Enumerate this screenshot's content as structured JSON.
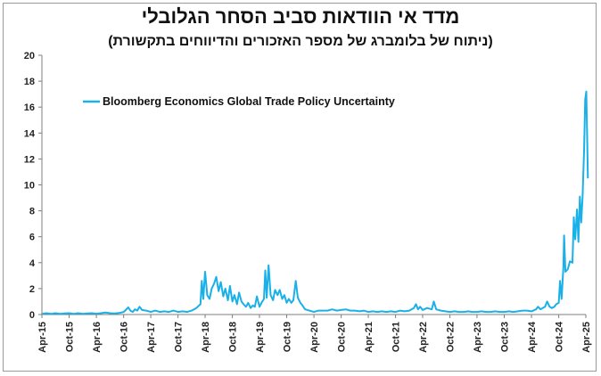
{
  "header": {
    "title": "מדד אי הוודאות סביב הסחר הגלובלי",
    "subtitle": "(ניתוח של בלומברג של מספר האזכורים והדיווחים בתקשורת)"
  },
  "chart_data": {
    "type": "line",
    "title": "מדד אי הוודאות סביב הסחר הגלובלי",
    "subtitle": "(ניתוח של בלומברג של מספר האזכורים והדיווחים בתקשורת)",
    "xlabel": "",
    "ylabel": "",
    "ylim": [
      0,
      20
    ],
    "yticks": [
      0,
      2,
      4,
      6,
      8,
      10,
      12,
      14,
      16,
      18,
      20
    ],
    "xticks": [
      "Apr-15",
      "Oct-15",
      "Apr-16",
      "Oct-16",
      "Apr-17",
      "Oct-17",
      "Apr-18",
      "Oct-18",
      "Apr-19",
      "Oct-19",
      "Apr-20",
      "Oct-20",
      "Apr-21",
      "Oct-21",
      "Apr-22",
      "Oct-22",
      "Apr-23",
      "Oct-23",
      "Apr-24",
      "Oct-24",
      "Apr-25"
    ],
    "x_start": "2015-04",
    "x_end": "2025-04",
    "grid": false,
    "legend_position": "top-left",
    "color": "#1ab0e8",
    "series": [
      {
        "name": "Bloomberg Economics Global Trade Policy Uncertainty",
        "points": [
          [
            "2015-04-01",
            0.05
          ],
          [
            "2015-05-01",
            0.1
          ],
          [
            "2015-06-01",
            0.05
          ],
          [
            "2015-07-01",
            0.1
          ],
          [
            "2015-08-01",
            0.05
          ],
          [
            "2015-09-01",
            0.08
          ],
          [
            "2015-10-01",
            0.1
          ],
          [
            "2015-11-01",
            0.05
          ],
          [
            "2015-12-01",
            0.1
          ],
          [
            "2016-01-01",
            0.05
          ],
          [
            "2016-02-01",
            0.08
          ],
          [
            "2016-03-01",
            0.1
          ],
          [
            "2016-04-01",
            0.06
          ],
          [
            "2016-05-01",
            0.1
          ],
          [
            "2016-06-01",
            0.15
          ],
          [
            "2016-07-01",
            0.1
          ],
          [
            "2016-08-01",
            0.08
          ],
          [
            "2016-09-01",
            0.12
          ],
          [
            "2016-10-01",
            0.2
          ],
          [
            "2016-11-01",
            0.55
          ],
          [
            "2016-11-15",
            0.3
          ],
          [
            "2016-12-01",
            0.2
          ],
          [
            "2016-12-15",
            0.4
          ],
          [
            "2017-01-01",
            0.3
          ],
          [
            "2017-01-15",
            0.6
          ],
          [
            "2017-02-01",
            0.35
          ],
          [
            "2017-03-01",
            0.3
          ],
          [
            "2017-04-01",
            0.2
          ],
          [
            "2017-05-01",
            0.3
          ],
          [
            "2017-06-01",
            0.2
          ],
          [
            "2017-07-01",
            0.25
          ],
          [
            "2017-08-01",
            0.2
          ],
          [
            "2017-09-01",
            0.3
          ],
          [
            "2017-10-01",
            0.2
          ],
          [
            "2017-11-01",
            0.25
          ],
          [
            "2017-12-01",
            0.2
          ],
          [
            "2018-01-01",
            0.3
          ],
          [
            "2018-02-01",
            0.5
          ],
          [
            "2018-03-01",
            0.8
          ],
          [
            "2018-03-10",
            2.6
          ],
          [
            "2018-03-20",
            1.2
          ],
          [
            "2018-04-01",
            3.3
          ],
          [
            "2018-04-15",
            1.5
          ],
          [
            "2018-05-01",
            1.2
          ],
          [
            "2018-05-15",
            2.0
          ],
          [
            "2018-06-01",
            2.4
          ],
          [
            "2018-06-15",
            2.9
          ],
          [
            "2018-07-01",
            1.8
          ],
          [
            "2018-07-15",
            2.5
          ],
          [
            "2018-08-01",
            1.4
          ],
          [
            "2018-08-15",
            2.0
          ],
          [
            "2018-09-01",
            1.1
          ],
          [
            "2018-09-15",
            2.2
          ],
          [
            "2018-10-01",
            1.0
          ],
          [
            "2018-10-15",
            1.5
          ],
          [
            "2018-11-01",
            0.8
          ],
          [
            "2018-11-15",
            1.7
          ],
          [
            "2018-12-01",
            1.0
          ],
          [
            "2018-12-15",
            0.8
          ],
          [
            "2019-01-01",
            0.6
          ],
          [
            "2019-01-15",
            0.9
          ],
          [
            "2019-02-01",
            0.5
          ],
          [
            "2019-02-15",
            0.7
          ],
          [
            "2019-03-01",
            0.6
          ],
          [
            "2019-03-15",
            1.4
          ],
          [
            "2019-04-01",
            0.6
          ],
          [
            "2019-04-15",
            0.9
          ],
          [
            "2019-05-01",
            1.2
          ],
          [
            "2019-05-10",
            3.4
          ],
          [
            "2019-05-20",
            1.3
          ],
          [
            "2019-06-01",
            3.8
          ],
          [
            "2019-06-15",
            1.5
          ],
          [
            "2019-07-01",
            1.1
          ],
          [
            "2019-07-15",
            1.9
          ],
          [
            "2019-08-01",
            1.5
          ],
          [
            "2019-08-15",
            1.9
          ],
          [
            "2019-09-01",
            1.2
          ],
          [
            "2019-09-15",
            1.5
          ],
          [
            "2019-10-01",
            0.9
          ],
          [
            "2019-10-15",
            1.2
          ],
          [
            "2019-11-01",
            0.9
          ],
          [
            "2019-11-15",
            1.1
          ],
          [
            "2019-12-01",
            2.6
          ],
          [
            "2019-12-15",
            1.3
          ],
          [
            "2020-01-01",
            0.9
          ],
          [
            "2020-01-15",
            0.7
          ],
          [
            "2020-02-01",
            0.4
          ],
          [
            "2020-03-01",
            0.3
          ],
          [
            "2020-04-01",
            0.2
          ],
          [
            "2020-05-01",
            0.3
          ],
          [
            "2020-06-01",
            0.3
          ],
          [
            "2020-07-01",
            0.3
          ],
          [
            "2020-08-01",
            0.4
          ],
          [
            "2020-09-01",
            0.3
          ],
          [
            "2020-10-01",
            0.35
          ],
          [
            "2020-11-01",
            0.4
          ],
          [
            "2020-12-01",
            0.3
          ],
          [
            "2021-01-01",
            0.3
          ],
          [
            "2021-02-01",
            0.25
          ],
          [
            "2021-03-01",
            0.3
          ],
          [
            "2021-04-01",
            0.2
          ],
          [
            "2021-05-01",
            0.25
          ],
          [
            "2021-06-01",
            0.2
          ],
          [
            "2021-07-01",
            0.25
          ],
          [
            "2021-08-01",
            0.2
          ],
          [
            "2021-09-01",
            0.25
          ],
          [
            "2021-10-01",
            0.2
          ],
          [
            "2021-11-01",
            0.3
          ],
          [
            "2021-12-01",
            0.25
          ],
          [
            "2022-01-01",
            0.3
          ],
          [
            "2022-02-01",
            0.5
          ],
          [
            "2022-02-15",
            0.8
          ],
          [
            "2022-03-01",
            0.4
          ],
          [
            "2022-03-15",
            0.6
          ],
          [
            "2022-04-01",
            0.35
          ],
          [
            "2022-05-01",
            0.5
          ],
          [
            "2022-06-01",
            0.4
          ],
          [
            "2022-06-15",
            1.0
          ],
          [
            "2022-07-01",
            0.4
          ],
          [
            "2022-08-01",
            0.3
          ],
          [
            "2022-09-01",
            0.25
          ],
          [
            "2022-10-01",
            0.2
          ],
          [
            "2022-11-01",
            0.25
          ],
          [
            "2022-12-01",
            0.2
          ],
          [
            "2023-01-01",
            0.2
          ],
          [
            "2023-02-01",
            0.25
          ],
          [
            "2023-03-01",
            0.2
          ],
          [
            "2023-04-01",
            0.2
          ],
          [
            "2023-05-01",
            0.25
          ],
          [
            "2023-06-01",
            0.2
          ],
          [
            "2023-07-01",
            0.2
          ],
          [
            "2023-08-01",
            0.25
          ],
          [
            "2023-09-01",
            0.2
          ],
          [
            "2023-10-01",
            0.2
          ],
          [
            "2023-11-01",
            0.25
          ],
          [
            "2023-12-01",
            0.2
          ],
          [
            "2024-01-01",
            0.25
          ],
          [
            "2024-02-01",
            0.3
          ],
          [
            "2024-03-01",
            0.3
          ],
          [
            "2024-04-01",
            0.25
          ],
          [
            "2024-05-01",
            0.4
          ],
          [
            "2024-05-15",
            0.6
          ],
          [
            "2024-06-01",
            0.4
          ],
          [
            "2024-06-15",
            0.5
          ],
          [
            "2024-07-01",
            0.6
          ],
          [
            "2024-07-15",
            1.0
          ],
          [
            "2024-08-01",
            0.6
          ],
          [
            "2024-08-15",
            0.5
          ],
          [
            "2024-09-01",
            0.6
          ],
          [
            "2024-09-15",
            0.8
          ],
          [
            "2024-10-01",
            0.9
          ],
          [
            "2024-10-10",
            2.6
          ],
          [
            "2024-10-20",
            1.2
          ],
          [
            "2024-11-01",
            3.6
          ],
          [
            "2024-11-06",
            6.1
          ],
          [
            "2024-11-15",
            3.3
          ],
          [
            "2024-12-01",
            3.5
          ],
          [
            "2024-12-15",
            4.1
          ],
          [
            "2025-01-01",
            4.0
          ],
          [
            "2025-01-10",
            7.5
          ],
          [
            "2025-01-20",
            5.8
          ],
          [
            "2025-02-01",
            8.1
          ],
          [
            "2025-02-10",
            5.6
          ],
          [
            "2025-02-20",
            9.1
          ],
          [
            "2025-03-01",
            7.1
          ],
          [
            "2025-03-10",
            9.0
          ],
          [
            "2025-03-20",
            12.6
          ],
          [
            "2025-03-28",
            16.6
          ],
          [
            "2025-04-04",
            17.2
          ],
          [
            "2025-04-10",
            13.6
          ],
          [
            "2025-04-15",
            10.5
          ]
        ]
      }
    ]
  }
}
